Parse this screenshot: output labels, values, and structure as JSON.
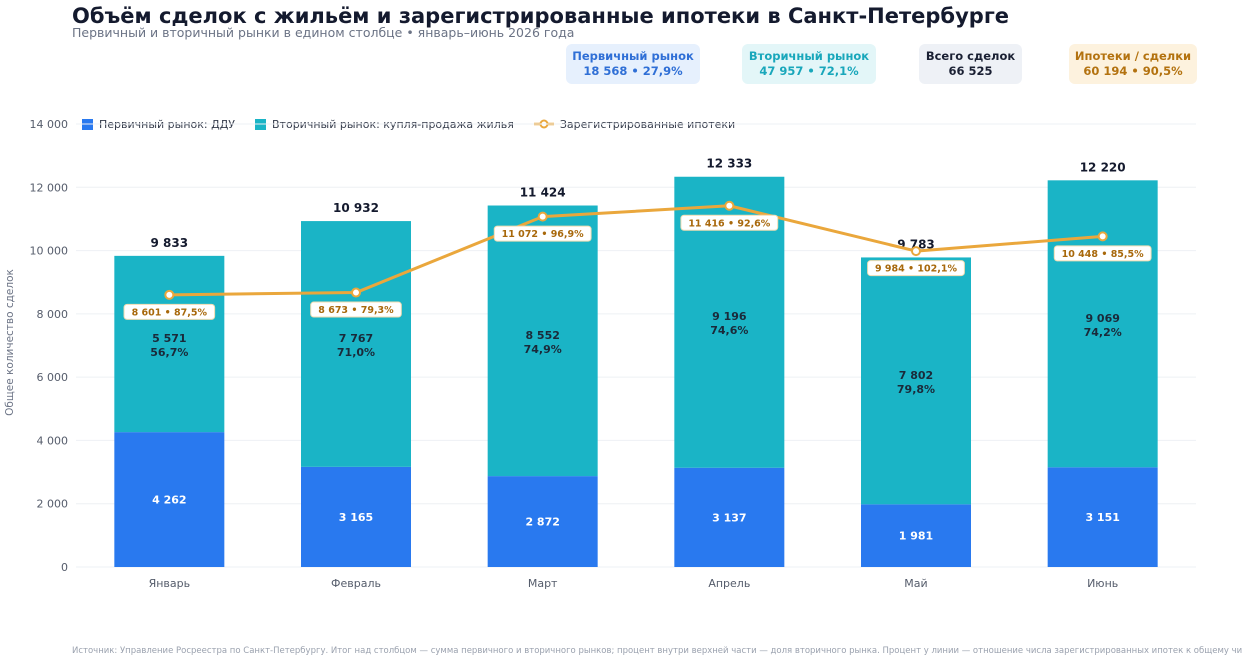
{
  "header": {
    "title": "Объём сделок с жильём и зарегистрированные ипотеки в Санкт-Петербурге",
    "subtitle": "Первичный и вторичный рынки в едином столбце • январь–июнь 2026 года"
  },
  "kpis": {
    "primary": {
      "label": "Первичный рынок",
      "value": "18 568  •  27,9%"
    },
    "secondary": {
      "label": "Вторичный рынок",
      "value": "47 957  •  72,1%"
    },
    "total": {
      "label": "Всего сделок",
      "value": "66 525"
    },
    "mortgage": {
      "label": "Ипотеки / сделки",
      "value": "60 194  •  90,5%"
    }
  },
  "legend": {
    "primary": "Первичный рынок: ДДУ",
    "secondary": "Вторичный рынок: купля-продажа жилья",
    "mortgage": "Зарегистрированные ипотеки"
  },
  "footer": {
    "note": "Источник: Управление Росреестра по Санкт-Петербургу. Итог над столбцом — сумма первичного и вторичного рынков; процент внутри верхней части — доля вторичного рынка. Процент у линии — отношение числа зарегистрированных ипотек к общему числу сделок."
  },
  "colors": {
    "primary": "#2979ef",
    "secondary": "#1ab4c6",
    "mortgage": "#eaa73c",
    "mortgage_label": "#a8680b"
  },
  "chart_data": {
    "type": "bar",
    "stacked": true,
    "categories": [
      "Январь",
      "Февраль",
      "Март",
      "Апрель",
      "Май",
      "Июнь"
    ],
    "series": [
      {
        "name": "Первичный рынок: ДДУ",
        "kind": "bar",
        "values": [
          4262,
          3165,
          2872,
          3137,
          1981,
          3151
        ]
      },
      {
        "name": "Вторичный рынок: купля-продажа жилья",
        "kind": "bar",
        "values": [
          5571,
          7767,
          8552,
          9196,
          7802,
          9069
        ]
      },
      {
        "name": "Зарегистрированные ипотеки",
        "kind": "line",
        "values": [
          8601,
          8673,
          11072,
          11416,
          9984,
          10448
        ]
      }
    ],
    "primary_labels": [
      "4 262",
      "3 165",
      "2 872",
      "3 137",
      "1 981",
      "3 151"
    ],
    "secondary_labels": [
      "5 571",
      "7 767",
      "8 552",
      "9 196",
      "7 802",
      "9 069"
    ],
    "secondary_share_labels": [
      "56,7%",
      "71,0%",
      "74,9%",
      "74,6%",
      "79,8%",
      "74,2%"
    ],
    "total_labels": [
      "9 833",
      "10 932",
      "11 424",
      "12 333",
      "9 783",
      "12 220"
    ],
    "mortgage_labels": [
      "8 601 • 87,5%",
      "8 673 • 79,3%",
      "11 072 • 96,9%",
      "11 416 • 92,6%",
      "9 984 • 102,1%",
      "10 448 • 85,5%"
    ],
    "yticks": [
      0,
      2000,
      4000,
      6000,
      8000,
      10000,
      12000,
      14000
    ],
    "ytick_labels": [
      "0",
      "2 000",
      "4 000",
      "6 000",
      "8 000",
      "10 000",
      "12 000",
      "14 000"
    ],
    "ylim": [
      0,
      14000
    ],
    "xlabel": "",
    "ylabel": "Общее количество сделок",
    "grid": true,
    "legend_position": "top-left"
  }
}
